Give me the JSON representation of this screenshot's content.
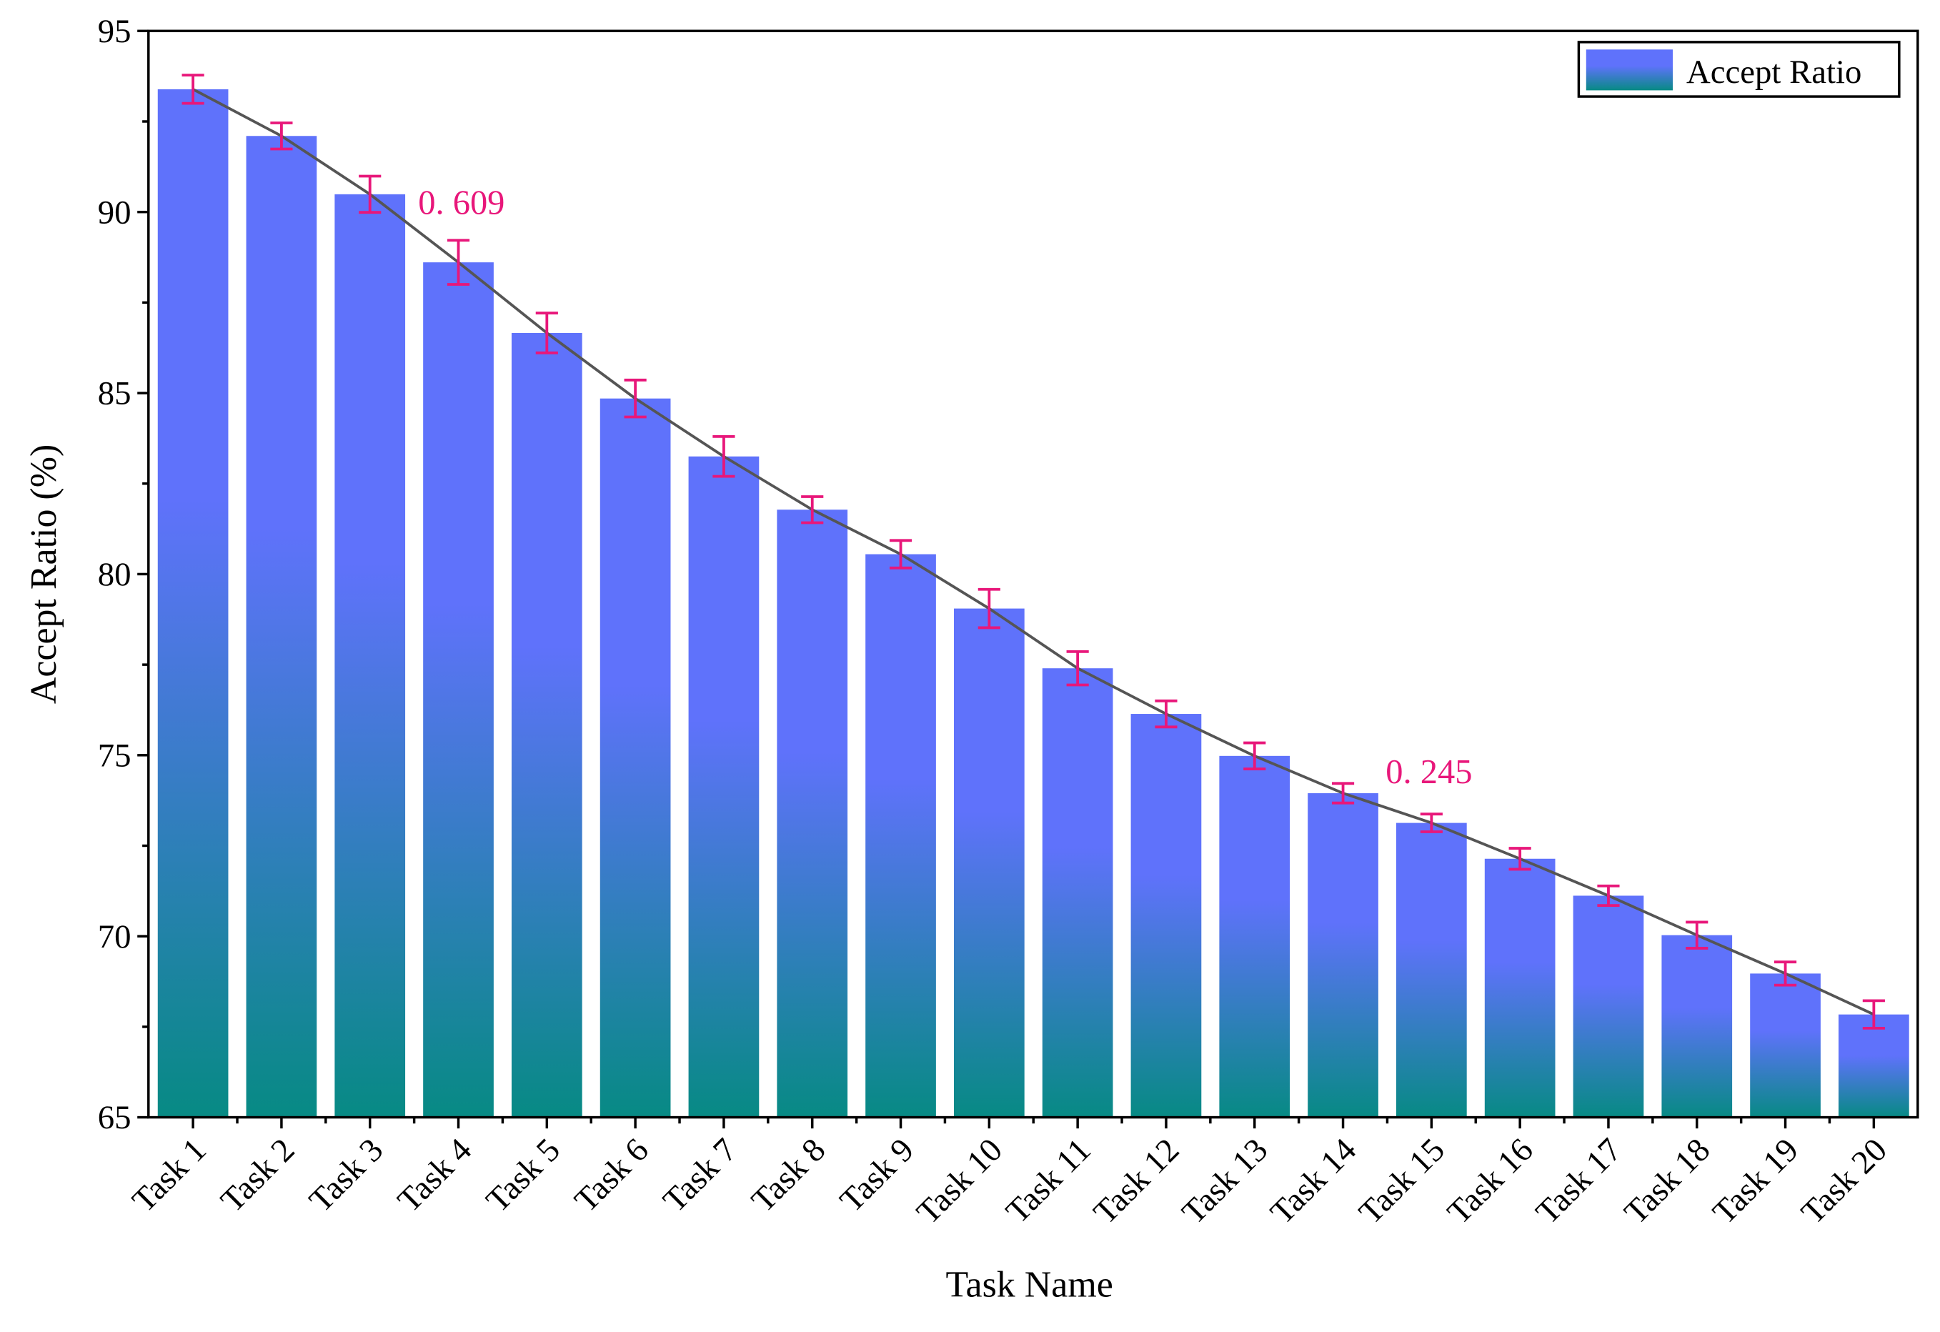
{
  "chart_data": {
    "type": "bar",
    "x_label": "Task Name",
    "y_label": "Accept Ratio (%)",
    "categories": [
      "Task 1",
      "Task 2",
      "Task 3",
      "Task 4",
      "Task 5",
      "Task 6",
      "Task 7",
      "Task 8",
      "Task 9",
      "Task 10",
      "Task 11",
      "Task 12",
      "Task 13",
      "Task 14",
      "Task 15",
      "Task 16",
      "Task 17",
      "Task 18",
      "Task 19",
      "Task 20"
    ],
    "series": [
      {
        "name": "Accept Ratio",
        "color": "#5f72fb",
        "color_bottom": "#078a84",
        "values": [
          93.39,
          92.1,
          90.49,
          88.61,
          86.66,
          84.85,
          83.25,
          81.78,
          80.55,
          79.05,
          77.4,
          76.14,
          74.98,
          73.95,
          73.13,
          72.14,
          71.12,
          70.03,
          68.97,
          67.84
        ],
        "errors": [
          0.39,
          0.36,
          0.5,
          0.609,
          0.55,
          0.51,
          0.55,
          0.36,
          0.38,
          0.53,
          0.46,
          0.36,
          0.36,
          0.27,
          0.245,
          0.29,
          0.27,
          0.36,
          0.32,
          0.38
        ],
        "error_color": "#e8177a",
        "line_color": "#555555"
      }
    ],
    "annotations": [
      "0. 609",
      "0. 245"
    ],
    "annotation_color": "#e8177a",
    "ylim": [
      65,
      95
    ],
    "yticks": [
      65,
      70,
      75,
      80,
      85,
      90,
      95
    ],
    "legend": "top-right"
  }
}
